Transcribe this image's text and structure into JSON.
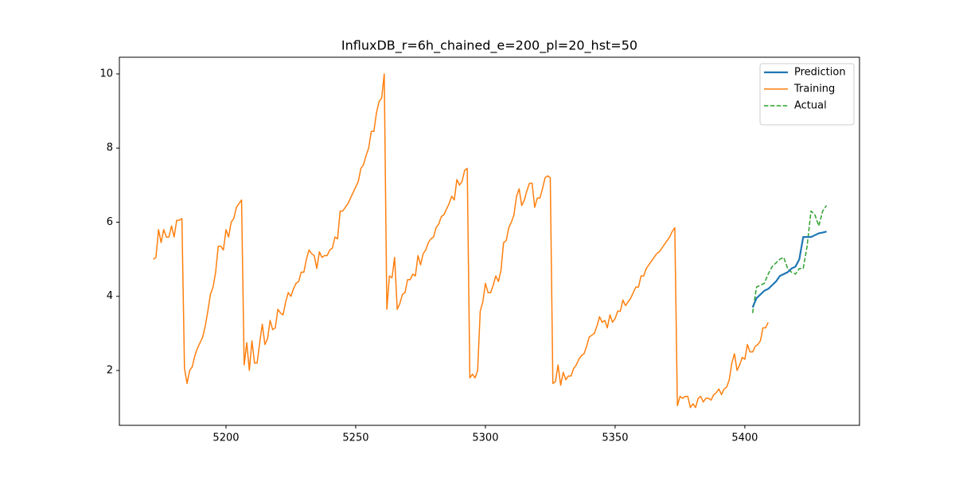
{
  "chart_data": {
    "type": "line",
    "title": "InfluxDB_r=6h_chained_e=200_pl=20_hst=50",
    "xlim": [
      5158.9,
      5444.2
    ],
    "ylim": [
      0.52,
      10.45
    ],
    "xticks": [
      5200,
      5250,
      5300,
      5350,
      5400
    ],
    "yticks": [
      2,
      4,
      6,
      8,
      10
    ],
    "grid": false,
    "legend": "upper right",
    "series": [
      {
        "name": "Prediction",
        "color": "#1f77b4",
        "linestyle": "solid",
        "linewidth": 2.2,
        "x": [
          5403,
          5404.5,
          5406,
          5407.5,
          5409,
          5410.5,
          5412,
          5413.5,
          5415,
          5416.5,
          5418,
          5419.5,
          5421,
          5422.5,
          5424,
          5425.5,
          5427,
          5428.5,
          5430,
          5431.5
        ],
        "values": [
          3.7,
          3.95,
          4.05,
          4.15,
          4.2,
          4.3,
          4.4,
          4.55,
          4.6,
          4.65,
          4.75,
          4.8,
          5.0,
          5.6,
          5.6,
          5.6,
          5.65,
          5.7,
          5.72,
          5.75
        ]
      },
      {
        "name": "Training",
        "color": "#ff7f0e",
        "linestyle": "solid",
        "linewidth": 1.5,
        "x": [
          5172,
          5173,
          5174,
          5175,
          5176,
          5177,
          5178,
          5179,
          5180,
          5181,
          5182,
          5183,
          5184,
          5185,
          5186,
          5187,
          5188,
          5189,
          5190,
          5191,
          5192,
          5193,
          5194,
          5195,
          5196,
          5197,
          5198,
          5199,
          5200,
          5201,
          5202,
          5203,
          5204,
          5205,
          5206,
          5207,
          5208,
          5209,
          5210,
          5211,
          5212,
          5213,
          5214,
          5215,
          5216,
          5217,
          5218,
          5219,
          5220,
          5221,
          5222,
          5223,
          5224,
          5225,
          5226,
          5227,
          5228,
          5229,
          5230,
          5231,
          5232,
          5233,
          5234,
          5235,
          5236,
          5237,
          5238,
          5239,
          5240,
          5241,
          5242,
          5243,
          5244,
          5245,
          5246,
          5247,
          5248,
          5249,
          5250,
          5251,
          5252,
          5253,
          5254,
          5255,
          5256,
          5257,
          5258,
          5259,
          5260,
          5261,
          5262,
          5263,
          5264,
          5265,
          5266,
          5267,
          5268,
          5269,
          5270,
          5271,
          5272,
          5273,
          5274,
          5275,
          5276,
          5277,
          5278,
          5279,
          5280,
          5281,
          5282,
          5283,
          5284,
          5285,
          5286,
          5287,
          5288,
          5289,
          5290,
          5291,
          5292,
          5293,
          5294,
          5295,
          5296,
          5297,
          5298,
          5299,
          5300,
          5301,
          5302,
          5303,
          5304,
          5305,
          5306,
          5307,
          5308,
          5309,
          5310,
          5311,
          5312,
          5313,
          5314,
          5315,
          5316,
          5317,
          5318,
          5319,
          5320,
          5321,
          5322,
          5323,
          5324,
          5325,
          5326,
          5327,
          5328,
          5329,
          5330,
          5331,
          5332,
          5333,
          5334,
          5335,
          5336,
          5337,
          5338,
          5339,
          5340,
          5341,
          5342,
          5343,
          5344,
          5345,
          5346,
          5347,
          5348,
          5349,
          5350,
          5351,
          5352,
          5353,
          5354,
          5355,
          5356,
          5357,
          5358,
          5359,
          5360,
          5361,
          5362,
          5363,
          5364,
          5365,
          5366,
          5367,
          5368,
          5369,
          5370,
          5371,
          5372,
          5373,
          5374,
          5375,
          5376,
          5377,
          5378,
          5379,
          5380,
          5381,
          5382,
          5383,
          5384,
          5385,
          5386,
          5387,
          5388,
          5389,
          5390,
          5391,
          5392,
          5393,
          5394,
          5395,
          5396,
          5397,
          5398,
          5399,
          5400,
          5401,
          5402,
          5403,
          5404,
          5405,
          5406,
          5407,
          5408,
          5409
        ],
        "values": [
          5.0,
          5.05,
          5.8,
          5.45,
          5.8,
          5.6,
          5.6,
          5.9,
          5.6,
          6.05,
          6.05,
          6.1,
          2.05,
          1.65,
          2.0,
          2.1,
          2.4,
          2.6,
          2.75,
          2.9,
          3.2,
          3.6,
          4.05,
          4.25,
          4.65,
          5.35,
          5.35,
          5.25,
          5.8,
          5.6,
          6.0,
          6.1,
          6.4,
          6.5,
          6.6,
          2.15,
          2.75,
          2.0,
          2.8,
          2.2,
          2.2,
          2.75,
          3.25,
          2.7,
          2.85,
          3.35,
          3.1,
          3.15,
          3.65,
          3.55,
          3.5,
          3.85,
          4.1,
          4.0,
          4.2,
          4.35,
          4.4,
          4.65,
          4.65,
          5.0,
          5.25,
          5.15,
          5.1,
          4.75,
          5.2,
          5.05,
          5.1,
          5.1,
          5.25,
          5.3,
          5.6,
          5.55,
          6.3,
          6.3,
          6.4,
          6.5,
          6.65,
          6.8,
          6.95,
          7.1,
          7.45,
          7.55,
          7.8,
          8.0,
          8.45,
          8.45,
          8.95,
          9.25,
          9.35,
          10.0,
          3.65,
          4.55,
          4.5,
          5.05,
          3.65,
          3.8,
          4.05,
          4.1,
          4.45,
          4.45,
          4.6,
          4.55,
          5.1,
          4.85,
          5.15,
          5.25,
          5.45,
          5.55,
          5.6,
          5.85,
          5.95,
          6.15,
          6.2,
          6.35,
          6.5,
          6.7,
          6.6,
          7.15,
          7.0,
          7.1,
          7.4,
          7.45,
          1.8,
          1.9,
          1.8,
          2.0,
          3.6,
          3.85,
          4.35,
          4.1,
          4.1,
          4.3,
          4.55,
          4.4,
          4.7,
          5.45,
          5.5,
          5.85,
          6.0,
          6.2,
          6.7,
          6.9,
          6.45,
          6.6,
          6.85,
          7.05,
          7.05,
          6.4,
          6.65,
          6.65,
          6.9,
          7.2,
          7.25,
          7.2,
          1.65,
          1.7,
          2.15,
          1.6,
          1.95,
          1.75,
          1.85,
          1.85,
          2.05,
          2.15,
          2.3,
          2.4,
          2.45,
          2.65,
          2.9,
          2.95,
          3.0,
          3.2,
          3.45,
          3.3,
          3.35,
          3.15,
          3.5,
          3.3,
          3.4,
          3.6,
          3.6,
          3.9,
          3.75,
          3.85,
          3.95,
          4.1,
          4.25,
          4.25,
          4.55,
          4.55,
          4.75,
          4.85,
          4.95,
          5.05,
          5.15,
          5.2,
          5.3,
          5.4,
          5.5,
          5.6,
          5.75,
          5.85,
          1.05,
          1.3,
          1.25,
          1.3,
          1.3,
          1.0,
          1.1,
          1.0,
          1.25,
          1.3,
          1.15,
          1.25,
          1.25,
          1.2,
          1.35,
          1.4,
          1.5,
          1.35,
          1.5,
          1.55,
          1.75,
          2.2,
          2.45,
          2.0,
          2.15,
          2.35,
          2.3,
          2.7,
          2.5,
          2.5,
          2.65,
          2.7,
          2.8,
          3.15,
          3.15,
          3.3
        ]
      },
      {
        "name": "Actual",
        "color": "#2ca02c",
        "linestyle": "dashed",
        "linewidth": 1.5,
        "x": [
          5403,
          5404.5,
          5406,
          5407.5,
          5409,
          5410.5,
          5412,
          5413.5,
          5415,
          5416.5,
          5418,
          5419.5,
          5421,
          5422.5,
          5424,
          5425.5,
          5427,
          5428.5,
          5430,
          5431.5
        ],
        "values": [
          3.55,
          4.25,
          4.3,
          4.35,
          4.6,
          4.8,
          4.9,
          5.0,
          5.05,
          4.75,
          4.65,
          4.6,
          4.75,
          4.75,
          5.35,
          6.3,
          6.2,
          5.9,
          6.3,
          6.45
        ]
      }
    ]
  }
}
